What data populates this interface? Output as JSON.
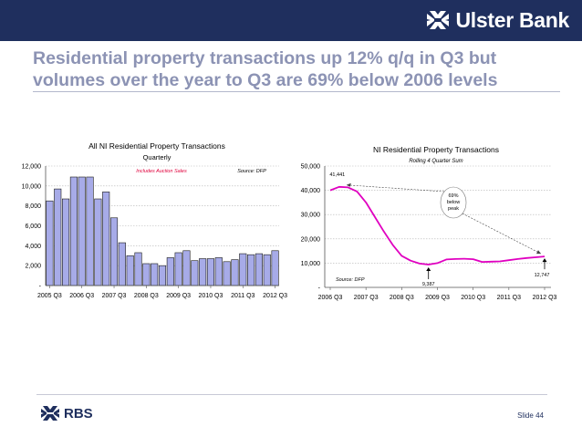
{
  "brand": {
    "name": "Ulster Bank",
    "footer_brand": "RBS",
    "banner_color": "#1f2f5e"
  },
  "headline": {
    "line1": "Residential property transactions up 12% q/q in Q3 but",
    "line2": "volumes over the year to Q3 are 69% below 2006 levels"
  },
  "footer": {
    "slide": "Slide 44"
  },
  "chart_data": [
    {
      "type": "bar",
      "title": "All NI Residential Property Transactions",
      "subtitle": "Quarterly",
      "note": "Includes Auction Sales",
      "source": "Source: DFP",
      "ylim": [
        0,
        12000
      ],
      "yticks": [
        0,
        2000,
        4000,
        6000,
        8000,
        10000,
        12000
      ],
      "ytick_labels": [
        "-",
        "2,000",
        "4,000",
        "6,000",
        "8,000",
        "10,000",
        "12,000"
      ],
      "xtick_labels": [
        "2005 Q3",
        "2006 Q3",
        "2007 Q3",
        "2008 Q3",
        "2009 Q3",
        "2010 Q3",
        "2011 Q3",
        "2012 Q3"
      ],
      "xtick_indices": [
        0,
        4,
        8,
        12,
        16,
        20,
        24,
        28
      ],
      "categories": [
        "2005 Q3",
        "2005 Q4",
        "2006 Q1",
        "2006 Q2",
        "2006 Q3",
        "2006 Q4",
        "2007 Q1",
        "2007 Q2",
        "2007 Q3",
        "2007 Q4",
        "2008 Q1",
        "2008 Q2",
        "2008 Q3",
        "2008 Q4",
        "2009 Q1",
        "2009 Q2",
        "2009 Q3",
        "2009 Q4",
        "2010 Q1",
        "2010 Q2",
        "2010 Q3",
        "2010 Q4",
        "2011 Q1",
        "2011 Q2",
        "2011 Q3",
        "2011 Q4",
        "2012 Q1",
        "2012 Q2",
        "2012 Q3"
      ],
      "values": [
        8500,
        9700,
        8700,
        10900,
        10900,
        10900,
        8700,
        9400,
        6800,
        4300,
        3000,
        3300,
        2200,
        2200,
        2000,
        2800,
        3300,
        3500,
        2500,
        2700,
        2700,
        2800,
        2400,
        2600,
        3200,
        3100,
        3200,
        3100,
        3500
      ],
      "bar_color": "#a7abe8"
    },
    {
      "type": "line",
      "title": "NI Residential Property Transactions",
      "subtitle": "Rolling 4 Quarter Sum",
      "source": "Source: DFP",
      "ylim": [
        0,
        50000
      ],
      "yticks": [
        0,
        10000,
        20000,
        30000,
        40000,
        50000
      ],
      "ytick_labels": [
        "-",
        "10,000",
        "20,000",
        "30,000",
        "40,000",
        "50,000"
      ],
      "xtick_labels": [
        "2006 Q3",
        "2007 Q3",
        "2008 Q3",
        "2009 Q3",
        "2010 Q3",
        "2011 Q3",
        "2012 Q3"
      ],
      "xtick_indices": [
        0,
        4,
        8,
        12,
        16,
        20,
        24
      ],
      "values": [
        40000,
        41441,
        41200,
        39500,
        35000,
        29000,
        23000,
        17500,
        13000,
        11000,
        9800,
        9387,
        10000,
        11500,
        11700,
        11800,
        11600,
        10500,
        10600,
        10700,
        11200,
        11700,
        12100,
        12400,
        12747
      ],
      "line_color": "#e000c0",
      "peak": {
        "index": 1,
        "label": "41,441"
      },
      "trough": {
        "index": 11,
        "label": "9,387"
      },
      "latest": {
        "index": 24,
        "label": "12,747"
      },
      "callout": [
        "69%",
        "below",
        "peak"
      ]
    }
  ]
}
